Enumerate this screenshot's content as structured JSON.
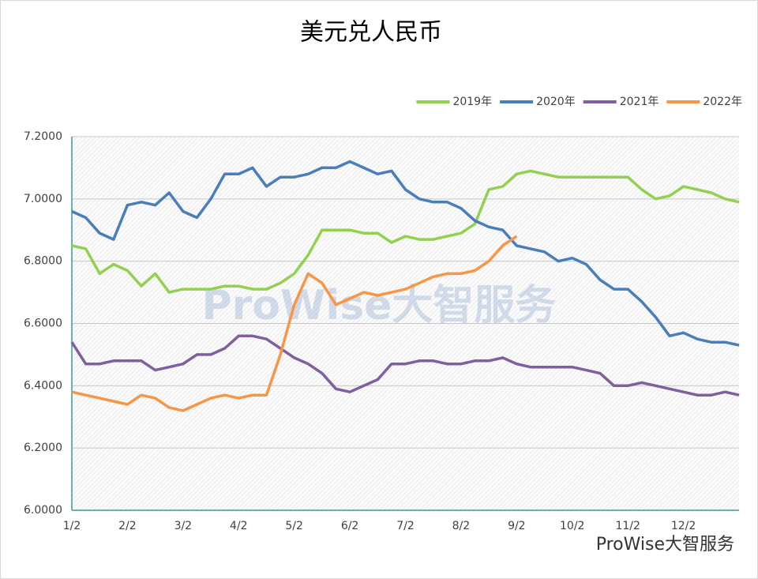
{
  "chart_data": {
    "type": "line",
    "title": "美元兑人民币",
    "watermark": "ProWise大智服务",
    "footer": "ProWise大智服务",
    "categories": [
      "1/2",
      null,
      null,
      null,
      "2/2",
      null,
      null,
      null,
      "3/2",
      null,
      null,
      null,
      "4/2",
      null,
      null,
      null,
      "5/2",
      null,
      null,
      null,
      "6/2",
      null,
      null,
      null,
      "7/2",
      null,
      null,
      null,
      "8/2",
      null,
      null,
      null,
      "9/2",
      null,
      null,
      null,
      "10/2",
      null,
      null,
      null,
      "11/2",
      null,
      null,
      null,
      "12/2",
      null,
      null,
      null,
      null
    ],
    "series": [
      {
        "name": "2019年",
        "color": "#92d050",
        "values": [
          6.85,
          6.84,
          6.76,
          6.79,
          6.77,
          6.72,
          6.76,
          6.7,
          6.71,
          6.71,
          6.71,
          6.72,
          6.72,
          6.71,
          6.71,
          6.73,
          6.76,
          6.82,
          6.9,
          6.9,
          6.9,
          6.89,
          6.89,
          6.86,
          6.88,
          6.87,
          6.87,
          6.88,
          6.89,
          6.92,
          7.03,
          7.04,
          7.08,
          7.09,
          7.08,
          7.07,
          7.07,
          7.07,
          7.07,
          7.07,
          7.07,
          7.03,
          7.0,
          7.01,
          7.04,
          7.03,
          7.02,
          7.0,
          6.99
        ]
      },
      {
        "name": "2020年",
        "color": "#4a7ebb",
        "values": [
          6.96,
          6.94,
          6.89,
          6.87,
          6.98,
          6.99,
          6.98,
          7.02,
          6.96,
          6.94,
          7.0,
          7.08,
          7.08,
          7.1,
          7.04,
          7.07,
          7.07,
          7.08,
          7.1,
          7.1,
          7.12,
          7.1,
          7.08,
          7.09,
          7.03,
          7.0,
          6.99,
          6.99,
          6.97,
          6.93,
          6.91,
          6.9,
          6.85,
          6.84,
          6.83,
          6.8,
          6.81,
          6.79,
          6.74,
          6.71,
          6.71,
          6.67,
          6.62,
          6.56,
          6.57,
          6.55,
          6.54,
          6.54,
          6.53
        ]
      },
      {
        "name": "2021年",
        "color": "#7f5fa0",
        "values": [
          6.54,
          6.47,
          6.47,
          6.48,
          6.48,
          6.48,
          6.45,
          6.46,
          6.47,
          6.5,
          6.5,
          6.52,
          6.56,
          6.56,
          6.55,
          6.52,
          6.49,
          6.47,
          6.44,
          6.39,
          6.38,
          6.4,
          6.42,
          6.47,
          6.47,
          6.48,
          6.48,
          6.47,
          6.47,
          6.48,
          6.48,
          6.49,
          6.47,
          6.46,
          6.46,
          6.46,
          6.46,
          6.45,
          6.44,
          6.4,
          6.4,
          6.41,
          6.4,
          6.39,
          6.38,
          6.37,
          6.37,
          6.38,
          6.37
        ]
      },
      {
        "name": "2022年",
        "color": "#f79646",
        "values": [
          6.38,
          6.37,
          6.36,
          6.35,
          6.34,
          6.37,
          6.36,
          6.33,
          6.32,
          6.34,
          6.36,
          6.37,
          6.36,
          6.37,
          6.37,
          6.5,
          6.66,
          6.76,
          6.73,
          6.66,
          6.68,
          6.7,
          6.69,
          6.7,
          6.71,
          6.73,
          6.75,
          6.76,
          6.76,
          6.77,
          6.8,
          6.85,
          6.88,
          null,
          null,
          null,
          null,
          null,
          null,
          null,
          null,
          null,
          null,
          null,
          null,
          null,
          null,
          null,
          null
        ]
      }
    ],
    "ylim": [
      6.0,
      7.2
    ],
    "yticks": [
      {
        "value": 6.0,
        "label": "6.0000"
      },
      {
        "value": 6.2,
        "label": "6.2000"
      },
      {
        "value": 6.4,
        "label": "6.4000"
      },
      {
        "value": 6.6,
        "label": "6.6000"
      },
      {
        "value": 6.8,
        "label": "6.8000"
      },
      {
        "value": 7.0,
        "label": "7.0000"
      },
      {
        "value": 7.2,
        "label": "7.2000"
      }
    ],
    "grid": true,
    "legend": "top-right"
  }
}
